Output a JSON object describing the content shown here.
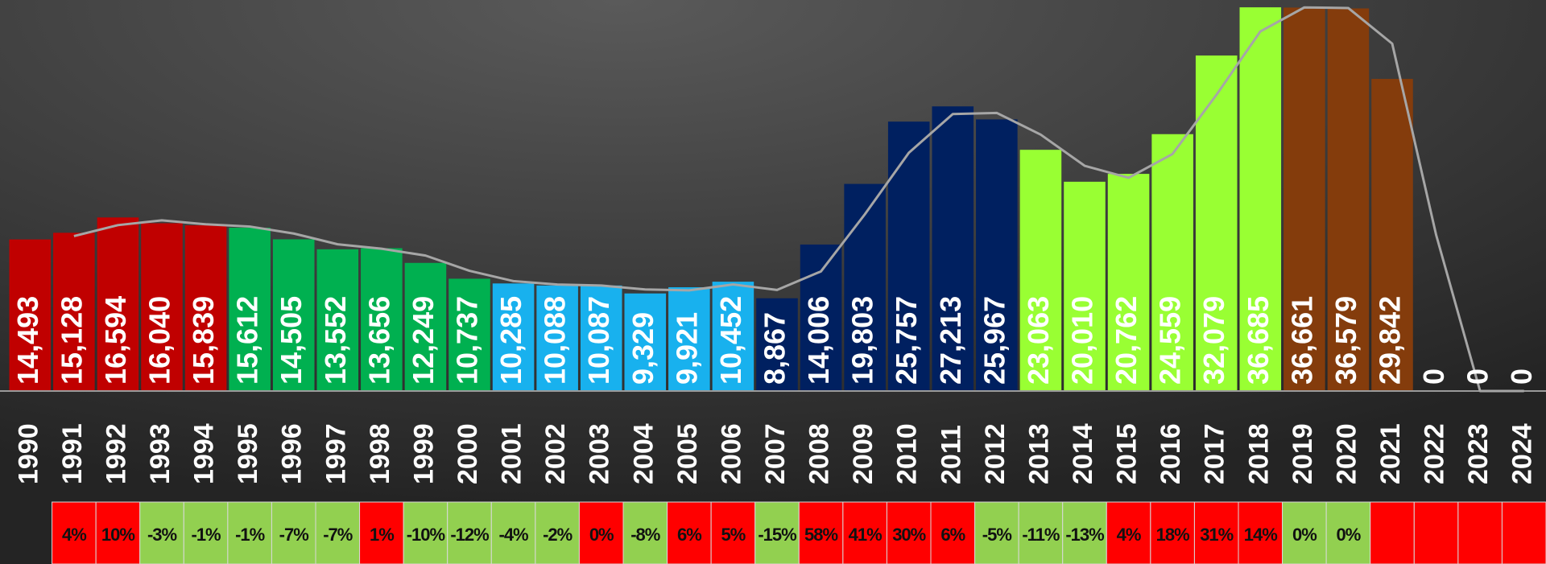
{
  "chart_data": {
    "type": "bar",
    "categories": [
      "1990",
      "1991",
      "1992",
      "1993",
      "1994",
      "1995",
      "1996",
      "1997",
      "1998",
      "1999",
      "2000",
      "2001",
      "2002",
      "2003",
      "2004",
      "2005",
      "2006",
      "2007",
      "2008",
      "2009",
      "2010",
      "2011",
      "2012",
      "2013",
      "2014",
      "2015",
      "2016",
      "2017",
      "2018",
      "2019",
      "2020",
      "2021",
      "2022",
      "2023",
      "2024"
    ],
    "values": [
      14493,
      15128,
      16594,
      16040,
      15839,
      15612,
      14505,
      13552,
      13656,
      12249,
      10737,
      10285,
      10088,
      10087,
      9329,
      9921,
      10452,
      8867,
      14006,
      19803,
      25757,
      27213,
      25967,
      23063,
      20010,
      20762,
      24559,
      32079,
      36685,
      36661,
      36579,
      29842,
      0,
      0,
      0
    ],
    "value_labels": [
      "14,493",
      "15,128",
      "16,594",
      "16,040",
      "15,839",
      "15,612",
      "14,505",
      "13,552",
      "13,656",
      "12,249",
      "10,737",
      "10,285",
      "10,088",
      "10,087",
      "9,329",
      "9,921",
      "10,452",
      "8,867",
      "14,006",
      "19,803",
      "25,757",
      "27,213",
      "25,967",
      "23,063",
      "20,010",
      "20,762",
      "24,559",
      "32,079",
      "36,685",
      "36,661",
      "36,579",
      "29,842",
      "0",
      "0",
      "0"
    ],
    "colors": [
      "#c00000",
      "#c00000",
      "#c00000",
      "#c00000",
      "#c00000",
      "#00b050",
      "#00b050",
      "#00b050",
      "#00b050",
      "#00b050",
      "#00b050",
      "#18b1ee",
      "#18b1ee",
      "#18b1ee",
      "#18b1ee",
      "#18b1ee",
      "#18b1ee",
      "#002060",
      "#002060",
      "#002060",
      "#002060",
      "#002060",
      "#002060",
      "#99ff33",
      "#99ff33",
      "#99ff33",
      "#99ff33",
      "#99ff33",
      "#99ff33",
      "#843c0c",
      "#843c0c",
      "#843c0c",
      "#843c0c",
      "#843c0c",
      "#843c0c"
    ],
    "ylim": [
      0,
      37000
    ],
    "line": {
      "color": "#a6a6a6",
      "values": [
        null,
        14811,
        15861,
        16317,
        15940,
        15726,
        15059,
        14029,
        13604,
        12953,
        11493,
        10511,
        10187,
        10088,
        9708,
        9625,
        10187,
        9660,
        11437,
        16905,
        22780,
        26485,
        26590,
        24515,
        21537,
        20386,
        22661,
        28319,
        34382,
        36673,
        36620,
        33211,
        14921,
        0,
        0
      ]
    },
    "change": {
      "values": [
        null,
        4,
        10,
        -3,
        -1,
        -1,
        -7,
        -7,
        1,
        -10,
        -12,
        -4,
        -2,
        0,
        -8,
        6,
        5,
        -15,
        58,
        41,
        30,
        6,
        -5,
        -11,
        -13,
        4,
        18,
        31,
        14,
        0,
        0,
        null,
        null,
        null,
        null
      ],
      "value_labels": [
        null,
        "4%",
        "10%",
        "-3%",
        "-1%",
        "-1%",
        "-7%",
        "-7%",
        "1%",
        "-10%",
        "-12%",
        "-4%",
        "-2%",
        "0%",
        "-8%",
        "6%",
        "5%",
        "-15%",
        "58%",
        "41%",
        "30%",
        "6%",
        "-5%",
        "-11%",
        "-13%",
        "4%",
        "18%",
        "31%",
        "14%",
        "0%",
        "0%",
        null,
        null,
        null,
        null
      ],
      "colors": [
        null,
        "#ff0000",
        "#ff0000",
        "#92d050",
        "#92d050",
        "#92d050",
        "#92d050",
        "#92d050",
        "#ff0000",
        "#92d050",
        "#92d050",
        "#92d050",
        "#92d050",
        "#ff0000",
        "#92d050",
        "#ff0000",
        "#ff0000",
        "#92d050",
        "#ff0000",
        "#ff0000",
        "#ff0000",
        "#ff0000",
        "#92d050",
        "#92d050",
        "#92d050",
        "#ff0000",
        "#ff0000",
        "#ff0000",
        "#ff0000",
        "#92d050",
        "#92d050",
        "#ff0000",
        "#ff0000",
        "#ff0000",
        "#ff0000"
      ]
    }
  }
}
